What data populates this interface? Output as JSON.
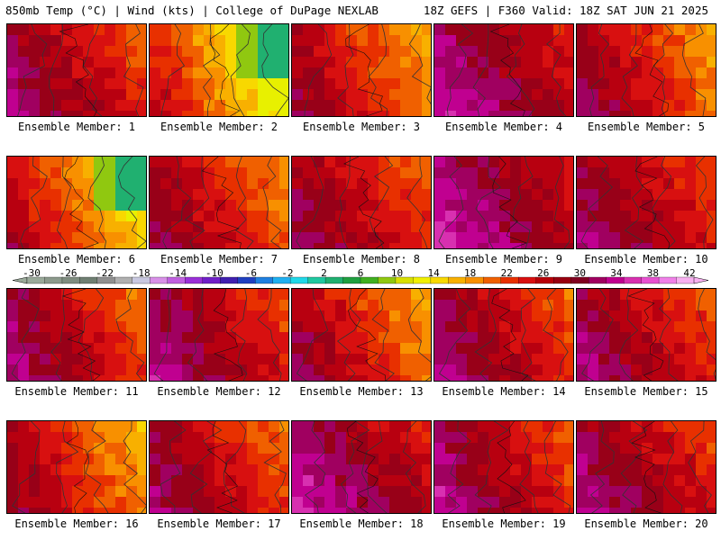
{
  "header": {
    "left_title": "850mb Temp (°C) | Wind (kts) | College of DuPage NEXLAB",
    "right_title": "18Z GEFS | F360 Valid: 18Z SAT JUN 21 2025"
  },
  "panels": [
    {
      "label": "Ensemble Member: 1",
      "warm": 0.78,
      "cool_band": 0.15
    },
    {
      "label": "Ensemble Member: 2",
      "warm": 0.55,
      "cool_band": 0.7
    },
    {
      "label": "Ensemble Member: 3",
      "warm": 0.7,
      "cool_band": 0.35
    },
    {
      "label": "Ensemble Member: 4",
      "warm": 0.85,
      "cool_band": 0.05
    },
    {
      "label": "Ensemble Member: 5",
      "warm": 0.75,
      "cool_band": 0.4
    },
    {
      "label": "Ensemble Member: 6",
      "warm": 0.62,
      "cool_band": 0.6
    },
    {
      "label": "Ensemble Member: 7",
      "warm": 0.72,
      "cool_band": 0.25
    },
    {
      "label": "Ensemble Member: 8",
      "warm": 0.74,
      "cool_band": 0.1
    },
    {
      "label": "Ensemble Member: 9",
      "warm": 0.88,
      "cool_band": 0.05
    },
    {
      "label": "Ensemble Member: 10",
      "warm": 0.78,
      "cool_band": 0.1
    },
    {
      "label": "Ensemble Member: 11",
      "warm": 0.8,
      "cool_band": 0.3
    },
    {
      "label": "Ensemble Member: 12",
      "warm": 0.82,
      "cool_band": 0.2
    },
    {
      "label": "Ensemble Member: 13",
      "warm": 0.72,
      "cool_band": 0.35
    },
    {
      "label": "Ensemble Member: 14",
      "warm": 0.8,
      "cool_band": 0.2
    },
    {
      "label": "Ensemble Member: 15",
      "warm": 0.78,
      "cool_band": 0.15
    },
    {
      "label": "Ensemble Member: 16",
      "warm": 0.7,
      "cool_band": 0.4
    },
    {
      "label": "Ensemble Member: 17",
      "warm": 0.76,
      "cool_band": 0.2
    },
    {
      "label": "Ensemble Member: 18",
      "warm": 0.86,
      "cool_band": 0.05
    },
    {
      "label": "Ensemble Member: 19",
      "warm": 0.84,
      "cool_band": 0.3
    },
    {
      "label": "Ensemble Member: 20",
      "warm": 0.8,
      "cool_band": 0.1
    }
  ],
  "colorbar": {
    "ticks": [
      "-30",
      "-26",
      "-22",
      "-18",
      "-14",
      "-10",
      "-6",
      "-2",
      "2",
      "6",
      "10",
      "14",
      "18",
      "22",
      "26",
      "30",
      "34",
      "38",
      "42"
    ],
    "colors": [
      "#9aaa9a",
      "#8c9a8c",
      "#7f8d80",
      "#6f7f72",
      "#909090",
      "#b0b0b0",
      "#c8c8e0",
      "#d890e8",
      "#c060e0",
      "#9a30d8",
      "#7020c8",
      "#4020b0",
      "#2040c0",
      "#2080e0",
      "#20b0f0",
      "#20d8e8",
      "#20c8a0",
      "#20b070",
      "#20a040",
      "#40b020",
      "#90c810",
      "#d8e000",
      "#f0f000",
      "#f8d800",
      "#f8b000",
      "#f89000",
      "#f06000",
      "#e83000",
      "#d81010",
      "#b80008",
      "#980010",
      "#800020",
      "#a00060",
      "#c00090",
      "#d830b0",
      "#e850d0",
      "#f080e8",
      "#f8b0f0"
    ]
  }
}
